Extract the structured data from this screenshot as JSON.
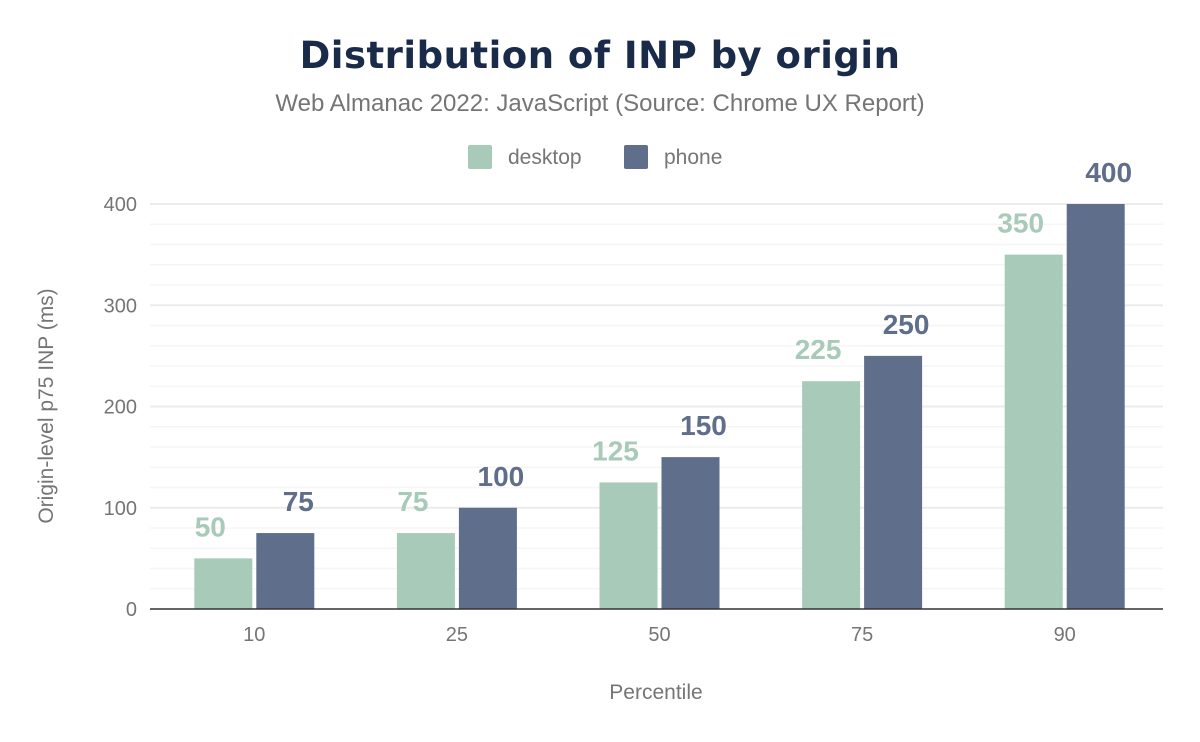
{
  "chart_data": {
    "type": "bar",
    "title": "Distribution of INP by origin",
    "subtitle": "Web Almanac 2022: JavaScript (Source: Chrome UX Report)",
    "xlabel": "Percentile",
    "ylabel": "Origin-level p75 INP (ms)",
    "categories": [
      "10",
      "25",
      "50",
      "75",
      "90"
    ],
    "series": [
      {
        "name": "desktop",
        "color": "#a8cab9",
        "values": [
          50,
          75,
          125,
          225,
          350
        ]
      },
      {
        "name": "phone",
        "color": "#5f6e8a",
        "values": [
          75,
          100,
          150,
          250,
          400
        ]
      }
    ],
    "ylim": [
      0,
      400
    ],
    "yticks": [
      0,
      100,
      200,
      300,
      400
    ],
    "grid": true,
    "legend": "top-center",
    "data_labels": true
  }
}
